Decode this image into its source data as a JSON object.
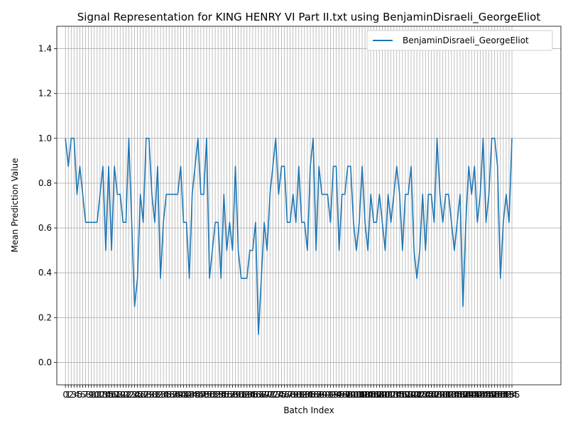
{
  "chart_data": {
    "type": "line",
    "title": "Signal Representation for KING HENRY VI Part II.txt using BenjaminDisraeli_GeorgeEliot",
    "xlabel": "Batch Index",
    "ylabel": "Mean Prediction Value",
    "ylim": [
      -0.1,
      1.5
    ],
    "xlim": [
      -3,
      172
    ],
    "yticks": [
      "0.0",
      "0.2",
      "0.4",
      "0.6",
      "0.8",
      "1.0",
      "1.2",
      "1.4"
    ],
    "grid": true,
    "legend_position": "top-right",
    "series": [
      {
        "name": "BenjaminDisraeli_GeorgeEliot",
        "color": "#1f77b4",
        "values": [
          1.0,
          0.875,
          1.0,
          1.0,
          0.75,
          0.875,
          0.75,
          0.625,
          0.625,
          0.625,
          0.625,
          0.625,
          0.75,
          0.875,
          0.5,
          0.875,
          0.5,
          0.875,
          0.75,
          0.75,
          0.625,
          0.625,
          1.0,
          0.625,
          0.25,
          0.375,
          0.75,
          0.625,
          1.0,
          1.0,
          0.75,
          0.625,
          0.875,
          0.375,
          0.625,
          0.75,
          0.75,
          0.75,
          0.75,
          0.75,
          0.875,
          0.625,
          0.625,
          0.375,
          0.75,
          0.875,
          1.0,
          0.75,
          0.75,
          1.0,
          0.375,
          0.5,
          0.625,
          0.625,
          0.375,
          0.75,
          0.5,
          0.625,
          0.5,
          0.875,
          0.5,
          0.375,
          0.375,
          0.375,
          0.5,
          0.5,
          0.625,
          0.125,
          0.375,
          0.625,
          0.5,
          0.75,
          0.875,
          1.0,
          0.75,
          0.875,
          0.875,
          0.625,
          0.625,
          0.75,
          0.625,
          0.875,
          0.625,
          0.625,
          0.5,
          0.875,
          1.0,
          0.5,
          0.875,
          0.75,
          0.75,
          0.75,
          0.625,
          0.875,
          0.875,
          0.5,
          0.75,
          0.75,
          0.875,
          0.875,
          0.625,
          0.5,
          0.625,
          0.875,
          0.625,
          0.5,
          0.75,
          0.625,
          0.625,
          0.75,
          0.625,
          0.5,
          0.75,
          0.625,
          0.75,
          0.875,
          0.75,
          0.5,
          0.75,
          0.75,
          0.875,
          0.5,
          0.375,
          0.5,
          0.75,
          0.5,
          0.75,
          0.75,
          0.625,
          1.0,
          0.75,
          0.625,
          0.75,
          0.75,
          0.625,
          0.5,
          0.625,
          0.75,
          0.25,
          0.625,
          0.875,
          0.75,
          0.875,
          0.625,
          0.75,
          1.0,
          0.625,
          0.75,
          1.0,
          1.0,
          0.875,
          0.375,
          0.625,
          0.75,
          0.625,
          1.0
        ]
      }
    ]
  }
}
